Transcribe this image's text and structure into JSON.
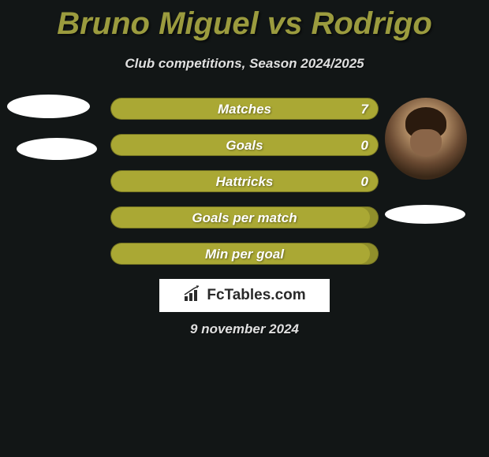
{
  "title": "Bruno Miguel vs Rodrigo",
  "subtitle": "Club competitions, Season 2024/2025",
  "date": "9 november 2024",
  "watermark": "FcTables.com",
  "colors": {
    "background": "#121616",
    "title": "#9b9b3e",
    "subtitle": "#e0e0e0",
    "bar_outer": "#908f2b",
    "bar_inner": "#aaa834",
    "text": "#ffffff"
  },
  "stats": [
    {
      "label": "Matches",
      "value_right": "7",
      "fill_pct": 100
    },
    {
      "label": "Goals",
      "value_right": "0",
      "fill_pct": 100
    },
    {
      "label": "Hattricks",
      "value_right": "0",
      "fill_pct": 100
    },
    {
      "label": "Goals per match",
      "value_right": "",
      "fill_pct": 97
    },
    {
      "label": "Min per goal",
      "value_right": "",
      "fill_pct": 97
    }
  ]
}
